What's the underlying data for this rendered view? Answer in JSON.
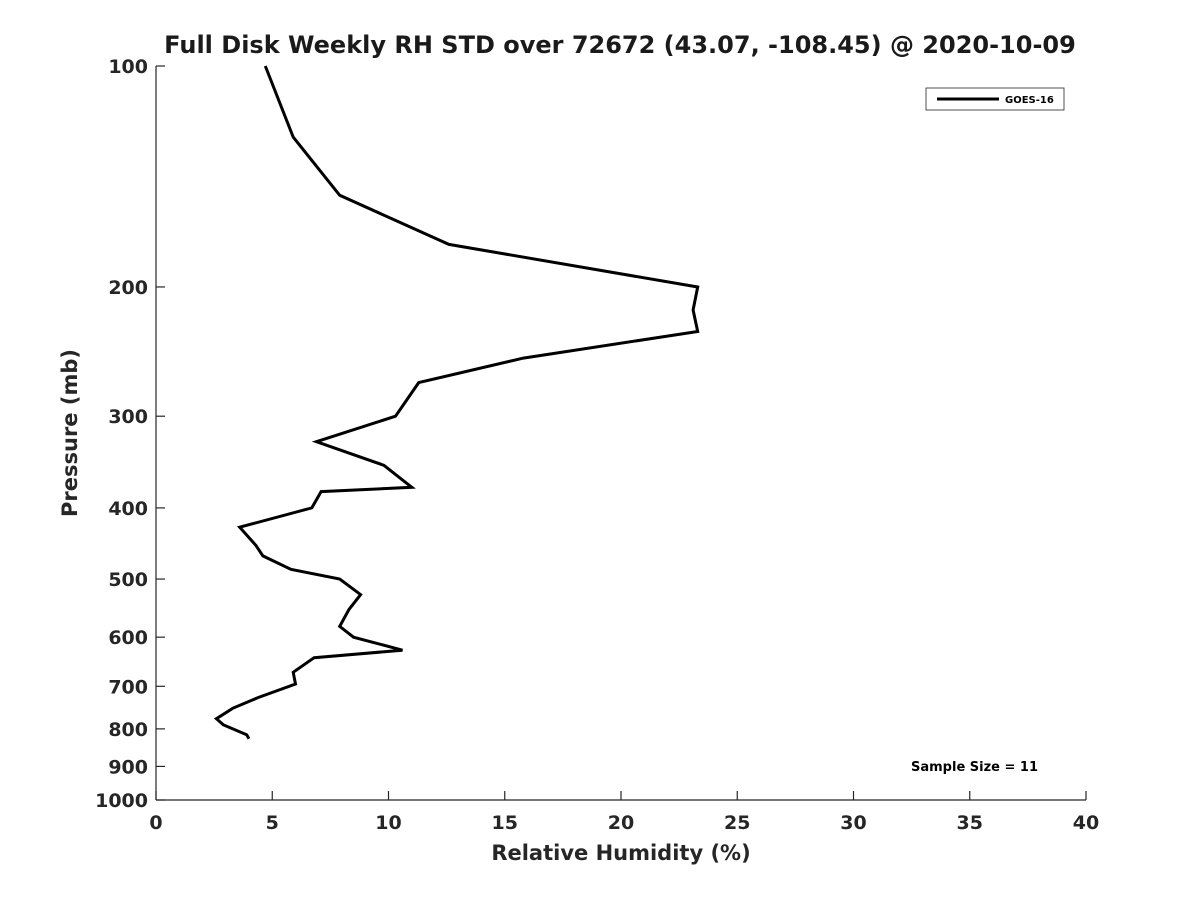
{
  "chart_data": {
    "type": "line",
    "title": "Full Disk Weekly RH STD over 72672 (43.07, -108.45) @ 2020-10-09",
    "xlabel": "Relative Humidity (%)",
    "ylabel": "Pressure (mb)",
    "xlim": [
      0,
      40
    ],
    "ylim": [
      100,
      1000
    ],
    "y_scale": "log",
    "y_reversed": true,
    "grid": false,
    "legend_position": "top-right",
    "x_ticks": [
      "0",
      "5",
      "10",
      "15",
      "20",
      "25",
      "30",
      "35",
      "40"
    ],
    "y_ticks": [
      "100",
      "200",
      "300",
      "400",
      "500",
      "600",
      "700",
      "800",
      "900",
      "1000"
    ],
    "series": [
      {
        "name": "GOES-16",
        "color": "#000000",
        "points": [
          {
            "rh": 4.7,
            "p": 100
          },
          {
            "rh": 5.9,
            "p": 125
          },
          {
            "rh": 7.9,
            "p": 150
          },
          {
            "rh": 12.6,
            "p": 175
          },
          {
            "rh": 23.3,
            "p": 200
          },
          {
            "rh": 23.1,
            "p": 215
          },
          {
            "rh": 23.3,
            "p": 230
          },
          {
            "rh": 15.8,
            "p": 250
          },
          {
            "rh": 11.3,
            "p": 270
          },
          {
            "rh": 10.3,
            "p": 300
          },
          {
            "rh": 6.9,
            "p": 325
          },
          {
            "rh": 9.8,
            "p": 350
          },
          {
            "rh": 11.0,
            "p": 375
          },
          {
            "rh": 7.1,
            "p": 380
          },
          {
            "rh": 6.7,
            "p": 400
          },
          {
            "rh": 3.6,
            "p": 425
          },
          {
            "rh": 4.3,
            "p": 450
          },
          {
            "rh": 4.6,
            "p": 465
          },
          {
            "rh": 5.8,
            "p": 485
          },
          {
            "rh": 7.9,
            "p": 500
          },
          {
            "rh": 8.8,
            "p": 525
          },
          {
            "rh": 8.3,
            "p": 550
          },
          {
            "rh": 7.9,
            "p": 580
          },
          {
            "rh": 8.5,
            "p": 600
          },
          {
            "rh": 10.6,
            "p": 625
          },
          {
            "rh": 6.8,
            "p": 640
          },
          {
            "rh": 5.9,
            "p": 670
          },
          {
            "rh": 6.0,
            "p": 695
          },
          {
            "rh": 4.4,
            "p": 725
          },
          {
            "rh": 3.3,
            "p": 750
          },
          {
            "rh": 2.6,
            "p": 775
          },
          {
            "rh": 2.9,
            "p": 790
          },
          {
            "rh": 3.9,
            "p": 815
          },
          {
            "rh": 4.0,
            "p": 825
          }
        ]
      }
    ],
    "annotation": "Sample Size = 11"
  }
}
